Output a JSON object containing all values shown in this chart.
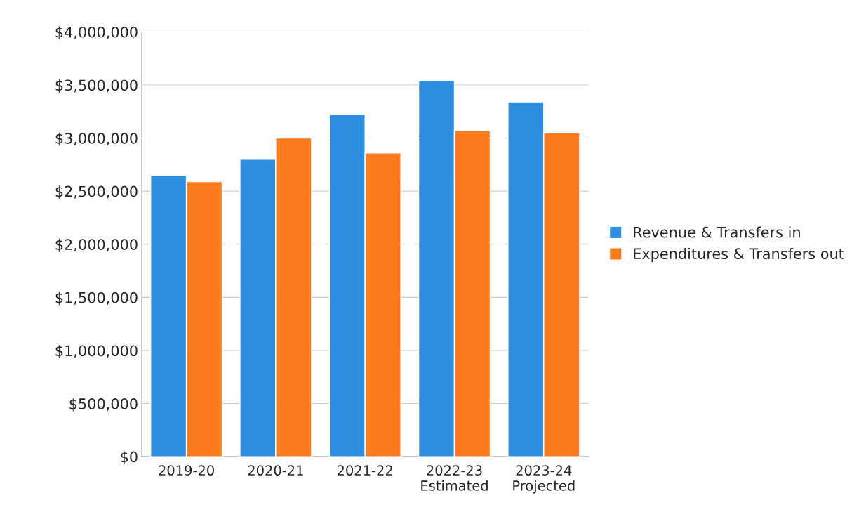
{
  "chart_data": {
    "type": "bar",
    "categories": [
      "2019-20",
      "2020-21",
      "2021-22",
      "2022-23\nEstimated",
      "2023-24\nProjected"
    ],
    "series": [
      {
        "name": "Revenue & Transfers in",
        "color": "#2e8fe0",
        "values": [
          2650000,
          2800000,
          3220000,
          3540000,
          3340000
        ]
      },
      {
        "name": "Expenditures & Transfers out",
        "color": "#fd7a1c",
        "values": [
          2590000,
          3000000,
          2860000,
          3070000,
          3050000
        ]
      }
    ],
    "ylim": [
      0,
      4000000
    ],
    "yticks": [
      {
        "value": 0,
        "label": "$0"
      },
      {
        "value": 500000,
        "label": "$500,000"
      },
      {
        "value": 1000000,
        "label": "$1,000,000"
      },
      {
        "value": 1500000,
        "label": "$1,500,000"
      },
      {
        "value": 2000000,
        "label": "$2,000,000"
      },
      {
        "value": 2500000,
        "label": "$2,500,000"
      },
      {
        "value": 3000000,
        "label": "$3,000,000"
      },
      {
        "value": 3500000,
        "label": "$3,500,000"
      },
      {
        "value": 4000000,
        "label": "$4,000,000"
      }
    ],
    "grid": "y",
    "legend": "right"
  }
}
